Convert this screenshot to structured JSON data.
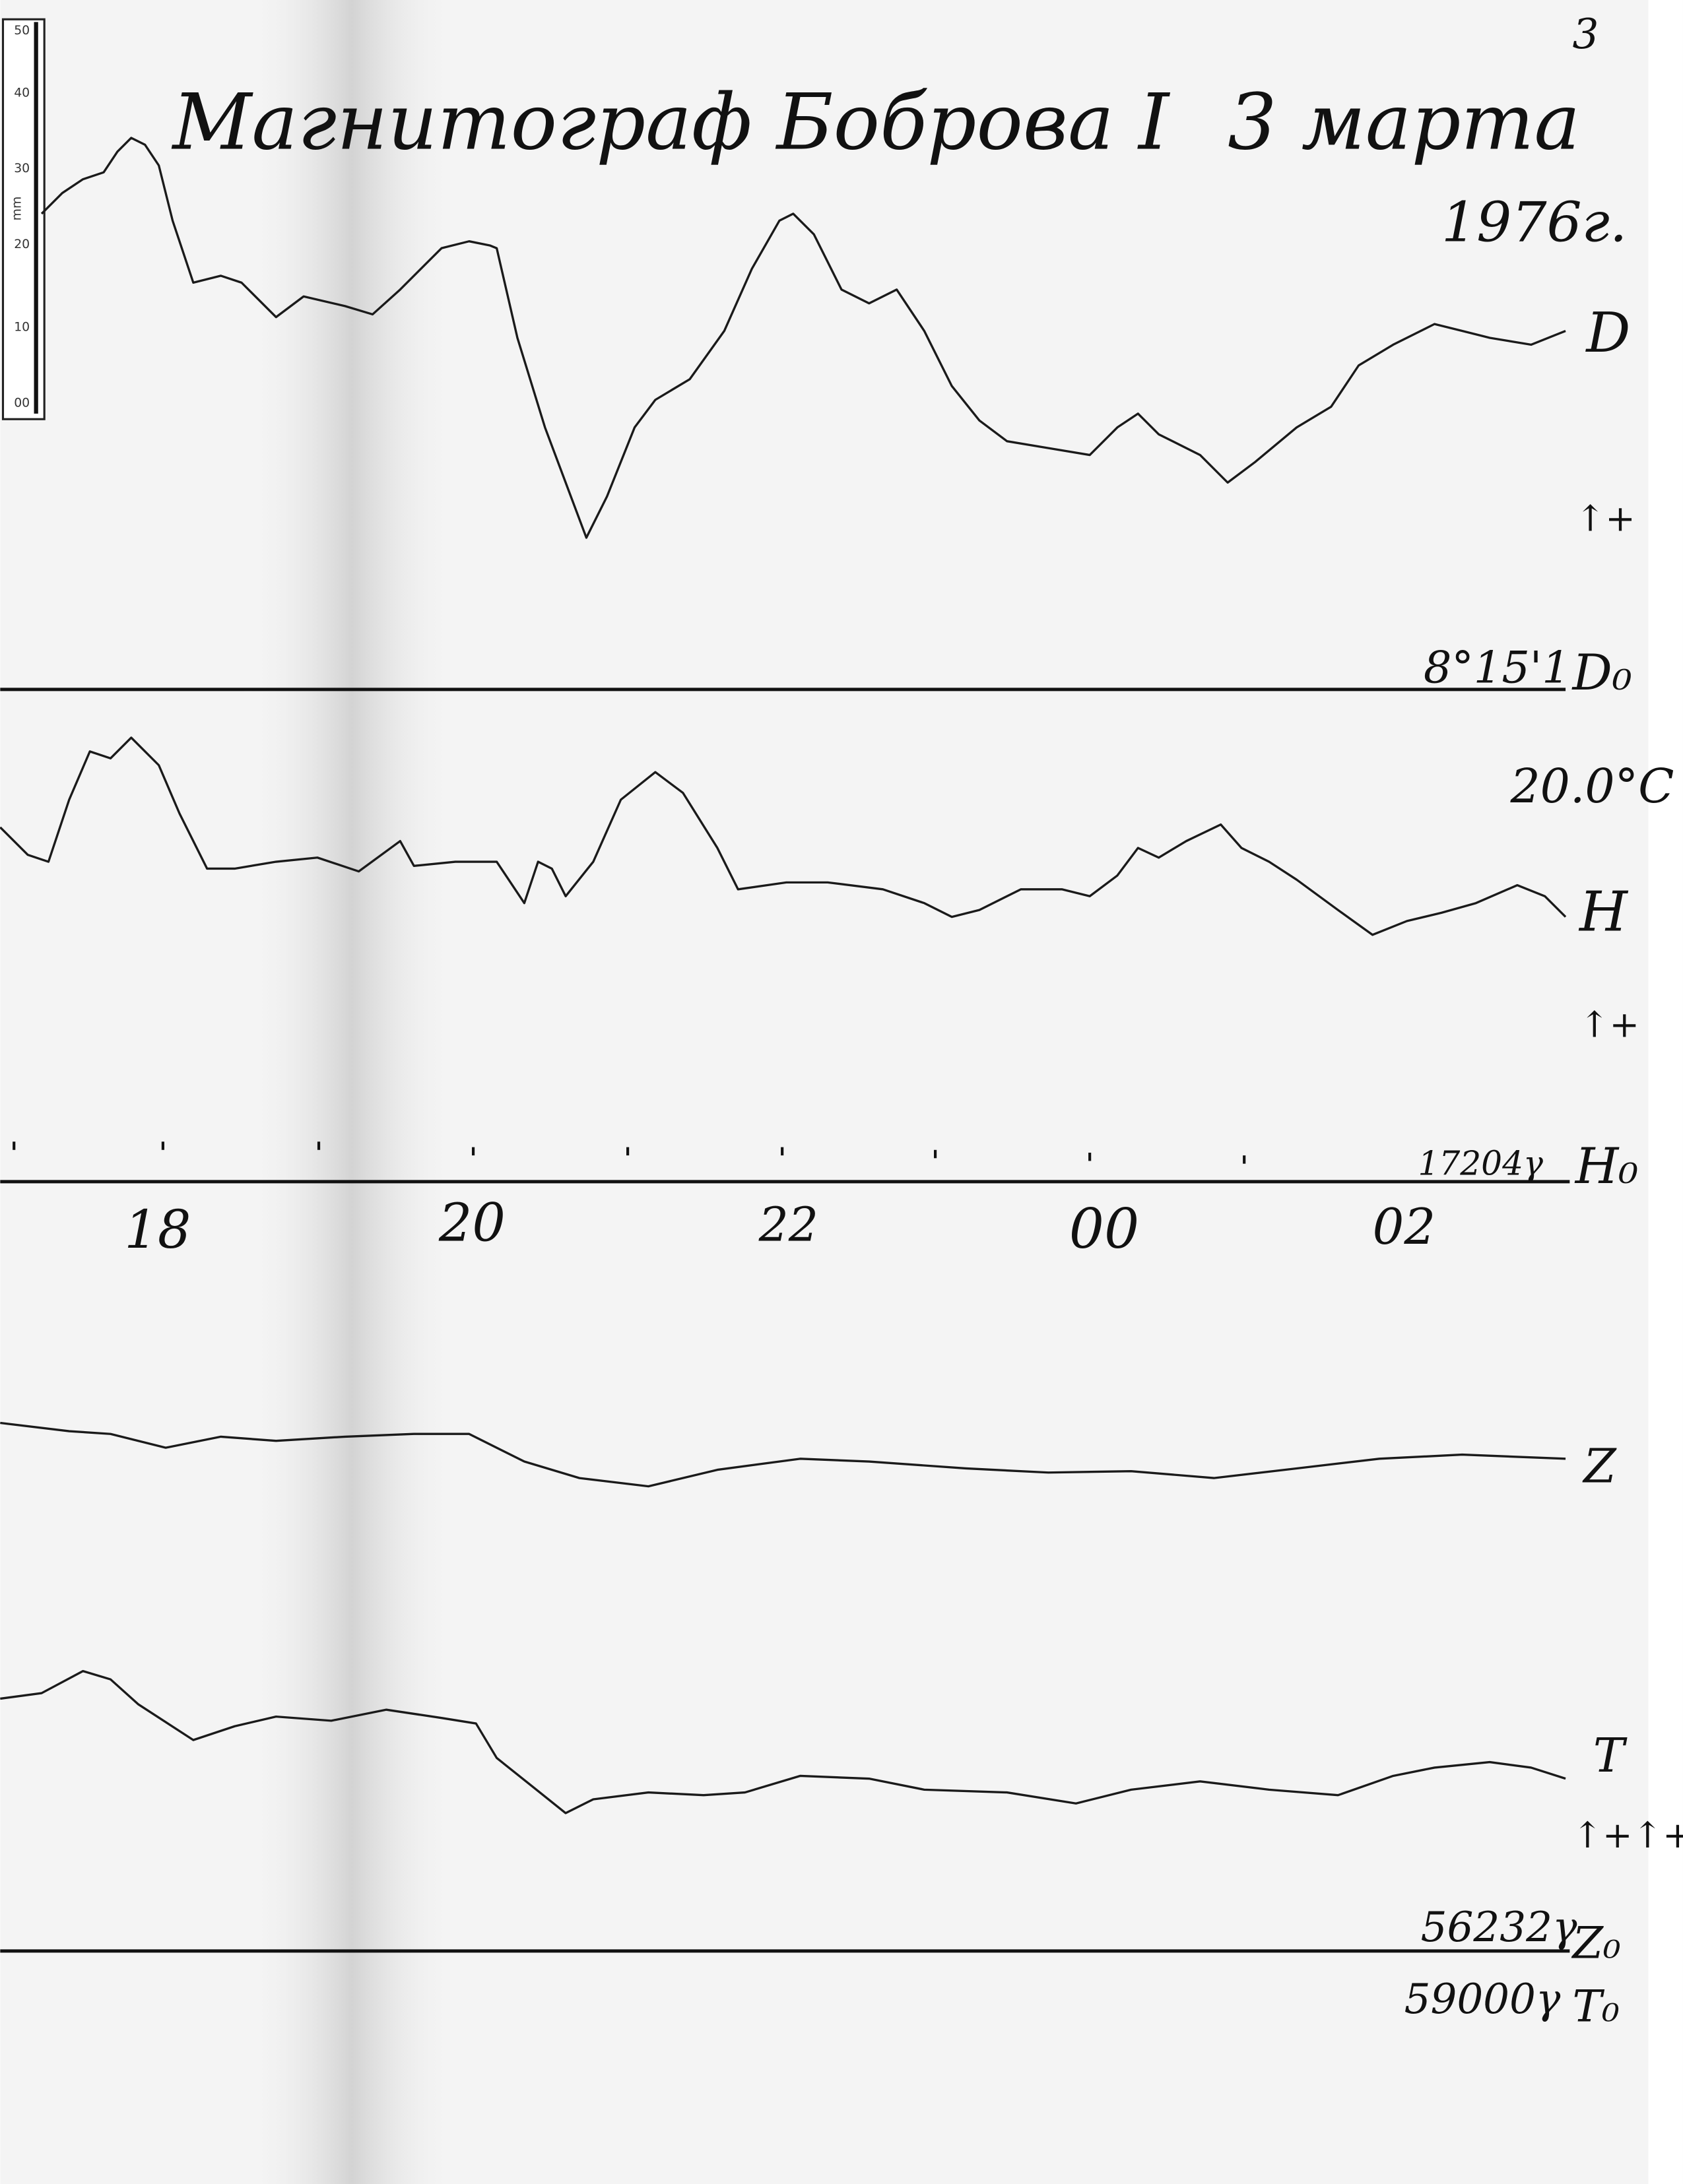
{
  "page_mark": "3",
  "header": {
    "title": "Магнитограф Боброва I",
    "date": "3 марта",
    "year": "1976г."
  },
  "ruler": {
    "unit": "mm",
    "labels": [
      "50",
      "40",
      "30",
      "20",
      "10",
      "00"
    ]
  },
  "traces": [
    {
      "label": "D",
      "polarity": "↑+",
      "baseline_value": "8°15'1",
      "baseline_label": "D₀"
    },
    {
      "label": "H",
      "polarity": "↑+",
      "temperature": "20.0°C",
      "baseline_value": "17204γ",
      "baseline_label": "H₀"
    },
    {
      "label": "Z"
    },
    {
      "label": "T",
      "polarity": "↑+↑+"
    }
  ],
  "time_labels": [
    "18",
    "20",
    "22",
    "00",
    "02"
  ],
  "baselines": [
    {
      "value": "56232γ",
      "label": "Z₀"
    },
    {
      "value": "59000γ",
      "label": "T₀"
    }
  ]
}
